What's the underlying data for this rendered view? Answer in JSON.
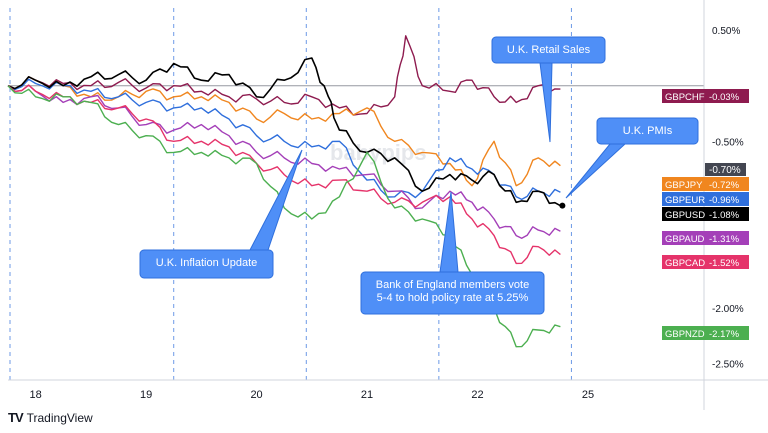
{
  "chart_data": {
    "type": "line",
    "ylabel": "",
    "xlabel": "",
    "x_ticks": [
      "18",
      "19",
      "20",
      "21",
      "22",
      "25"
    ],
    "y_ticks": [
      "0.50%",
      "-0.50%",
      "-2.00%",
      "-2.50%"
    ],
    "ylim": [
      -2.65,
      0.7
    ],
    "xlim": [
      0,
      6.3
    ],
    "grid": "dashed vertical session lines",
    "zero_line": true,
    "annotations": [
      {
        "text": "U.K. Retail Sales"
      },
      {
        "text": "U.K. PMIs"
      },
      {
        "text": "U.K. Inflation Update"
      },
      {
        "text": "Bank of England members vote 5-4 to hold policy rate at 5.25%"
      }
    ],
    "watermark": "babypips",
    "extra_labels": [
      {
        "value": "-0.70%"
      }
    ],
    "series": [
      {
        "name": "GBPCHF",
        "last": "-0.03%",
        "color": "#8e1b4f",
        "x": [
          0,
          0.25,
          0.5,
          0.75,
          1.0,
          1.25,
          1.5,
          1.75,
          2.0,
          2.25,
          2.5,
          2.75,
          3.0,
          3.25,
          3.5,
          3.6,
          3.75,
          4.0,
          4.2,
          4.4,
          4.6,
          4.8,
          5.0
        ],
        "values": [
          0.0,
          0.05,
          0.02,
          0.0,
          0.03,
          -0.02,
          0.0,
          -0.05,
          -0.1,
          -0.12,
          -0.15,
          -0.1,
          -0.2,
          -0.25,
          -0.1,
          0.45,
          0.0,
          -0.05,
          0.05,
          -0.1,
          -0.15,
          0.0,
          -0.03
        ]
      },
      {
        "name": "GBPJPY",
        "last": "-0.72%",
        "color": "#f0861f",
        "x": [
          0,
          0.25,
          0.5,
          0.75,
          1.0,
          1.25,
          1.5,
          1.75,
          2.0,
          2.25,
          2.5,
          2.75,
          3.0,
          3.25,
          3.5,
          3.75,
          4.0,
          4.2,
          4.4,
          4.6,
          4.8,
          5.0
        ],
        "values": [
          0.0,
          0.05,
          0.0,
          -0.1,
          -0.1,
          -0.05,
          -0.1,
          -0.1,
          -0.15,
          -0.3,
          -0.25,
          -0.3,
          -0.25,
          -0.2,
          -0.5,
          -0.6,
          -0.7,
          -0.9,
          -0.5,
          -0.9,
          -0.65,
          -0.72
        ]
      },
      {
        "name": "GBPEUR",
        "last": "-0.96%",
        "color": "#2f6fdc",
        "x": [
          0,
          0.25,
          0.5,
          0.75,
          1.0,
          1.25,
          1.5,
          1.75,
          2.0,
          2.25,
          2.5,
          2.75,
          3.0,
          3.25,
          3.5,
          3.75,
          4.0,
          4.2,
          4.4,
          4.6,
          4.8,
          5.0
        ],
        "values": [
          0.0,
          0.02,
          0.0,
          -0.05,
          -0.1,
          -0.15,
          -0.2,
          -0.2,
          -0.3,
          -0.45,
          -0.5,
          -0.55,
          -0.5,
          -0.85,
          -1.0,
          -0.95,
          -0.65,
          -0.75,
          -0.8,
          -1.0,
          -0.95,
          -0.96
        ]
      },
      {
        "name": "GBPUSD",
        "last": "-1.08%",
        "color": "#000000",
        "x": [
          0,
          0.25,
          0.5,
          0.75,
          1.0,
          1.25,
          1.5,
          1.75,
          2.0,
          2.25,
          2.5,
          2.75,
          2.9,
          3.0,
          3.25,
          3.5,
          3.75,
          4.0,
          4.2,
          4.4,
          4.6,
          4.8,
          5.0
        ],
        "values": [
          0.0,
          0.05,
          0.0,
          0.08,
          0.1,
          0.05,
          0.2,
          0.05,
          0.1,
          -0.1,
          0.05,
          0.25,
          -0.1,
          -0.4,
          -0.6,
          -0.65,
          -0.95,
          -0.8,
          -0.85,
          -0.8,
          -1.05,
          -0.95,
          -1.08
        ]
      },
      {
        "name": "GBPAUD",
        "last": "-1.31%",
        "color": "#a43fb8",
        "x": [
          0,
          0.25,
          0.5,
          0.75,
          1.0,
          1.25,
          1.5,
          1.75,
          2.0,
          2.25,
          2.5,
          2.75,
          3.0,
          3.25,
          3.5,
          3.75,
          4.0,
          4.2,
          4.4,
          4.6,
          4.8,
          5.0
        ],
        "values": [
          0.0,
          -0.05,
          -0.15,
          -0.1,
          -0.2,
          -0.35,
          -0.4,
          -0.35,
          -0.45,
          -0.6,
          -0.65,
          -0.7,
          -0.75,
          -0.8,
          -0.95,
          -1.1,
          -0.95,
          -1.05,
          -1.2,
          -1.35,
          -1.3,
          -1.31
        ]
      },
      {
        "name": "GBPCAD",
        "last": "-1.52%",
        "color": "#e5336a",
        "x": [
          0,
          0.25,
          0.5,
          0.75,
          1.0,
          1.25,
          1.5,
          1.75,
          2.0,
          2.25,
          2.5,
          2.75,
          3.0,
          3.25,
          3.5,
          3.75,
          4.0,
          4.2,
          4.4,
          4.6,
          4.8,
          5.0
        ],
        "values": [
          0.0,
          -0.05,
          -0.1,
          -0.15,
          -0.2,
          -0.3,
          -0.5,
          -0.5,
          -0.55,
          -0.7,
          -0.8,
          -0.9,
          -0.85,
          -0.95,
          -1.05,
          -1.05,
          -1.0,
          -1.2,
          -1.35,
          -1.6,
          -1.45,
          -1.52
        ]
      },
      {
        "name": "GBPNZD",
        "last": "-2.17%",
        "color": "#4caf50",
        "x": [
          0,
          0.25,
          0.5,
          0.75,
          1.0,
          1.25,
          1.5,
          1.75,
          2.0,
          2.25,
          2.5,
          2.75,
          3.0,
          3.25,
          3.5,
          3.75,
          4.0,
          4.2,
          4.4,
          4.6,
          4.8,
          5.0
        ],
        "values": [
          0.0,
          -0.1,
          -0.1,
          -0.15,
          -0.35,
          -0.45,
          -0.6,
          -0.6,
          -0.65,
          -0.7,
          -1.1,
          -1.2,
          -1.0,
          -0.6,
          -1.1,
          -1.2,
          -1.35,
          -1.7,
          -2.0,
          -2.35,
          -2.2,
          -2.17
        ]
      }
    ]
  },
  "branding": {
    "name": "TradingView",
    "mark": "TV"
  }
}
